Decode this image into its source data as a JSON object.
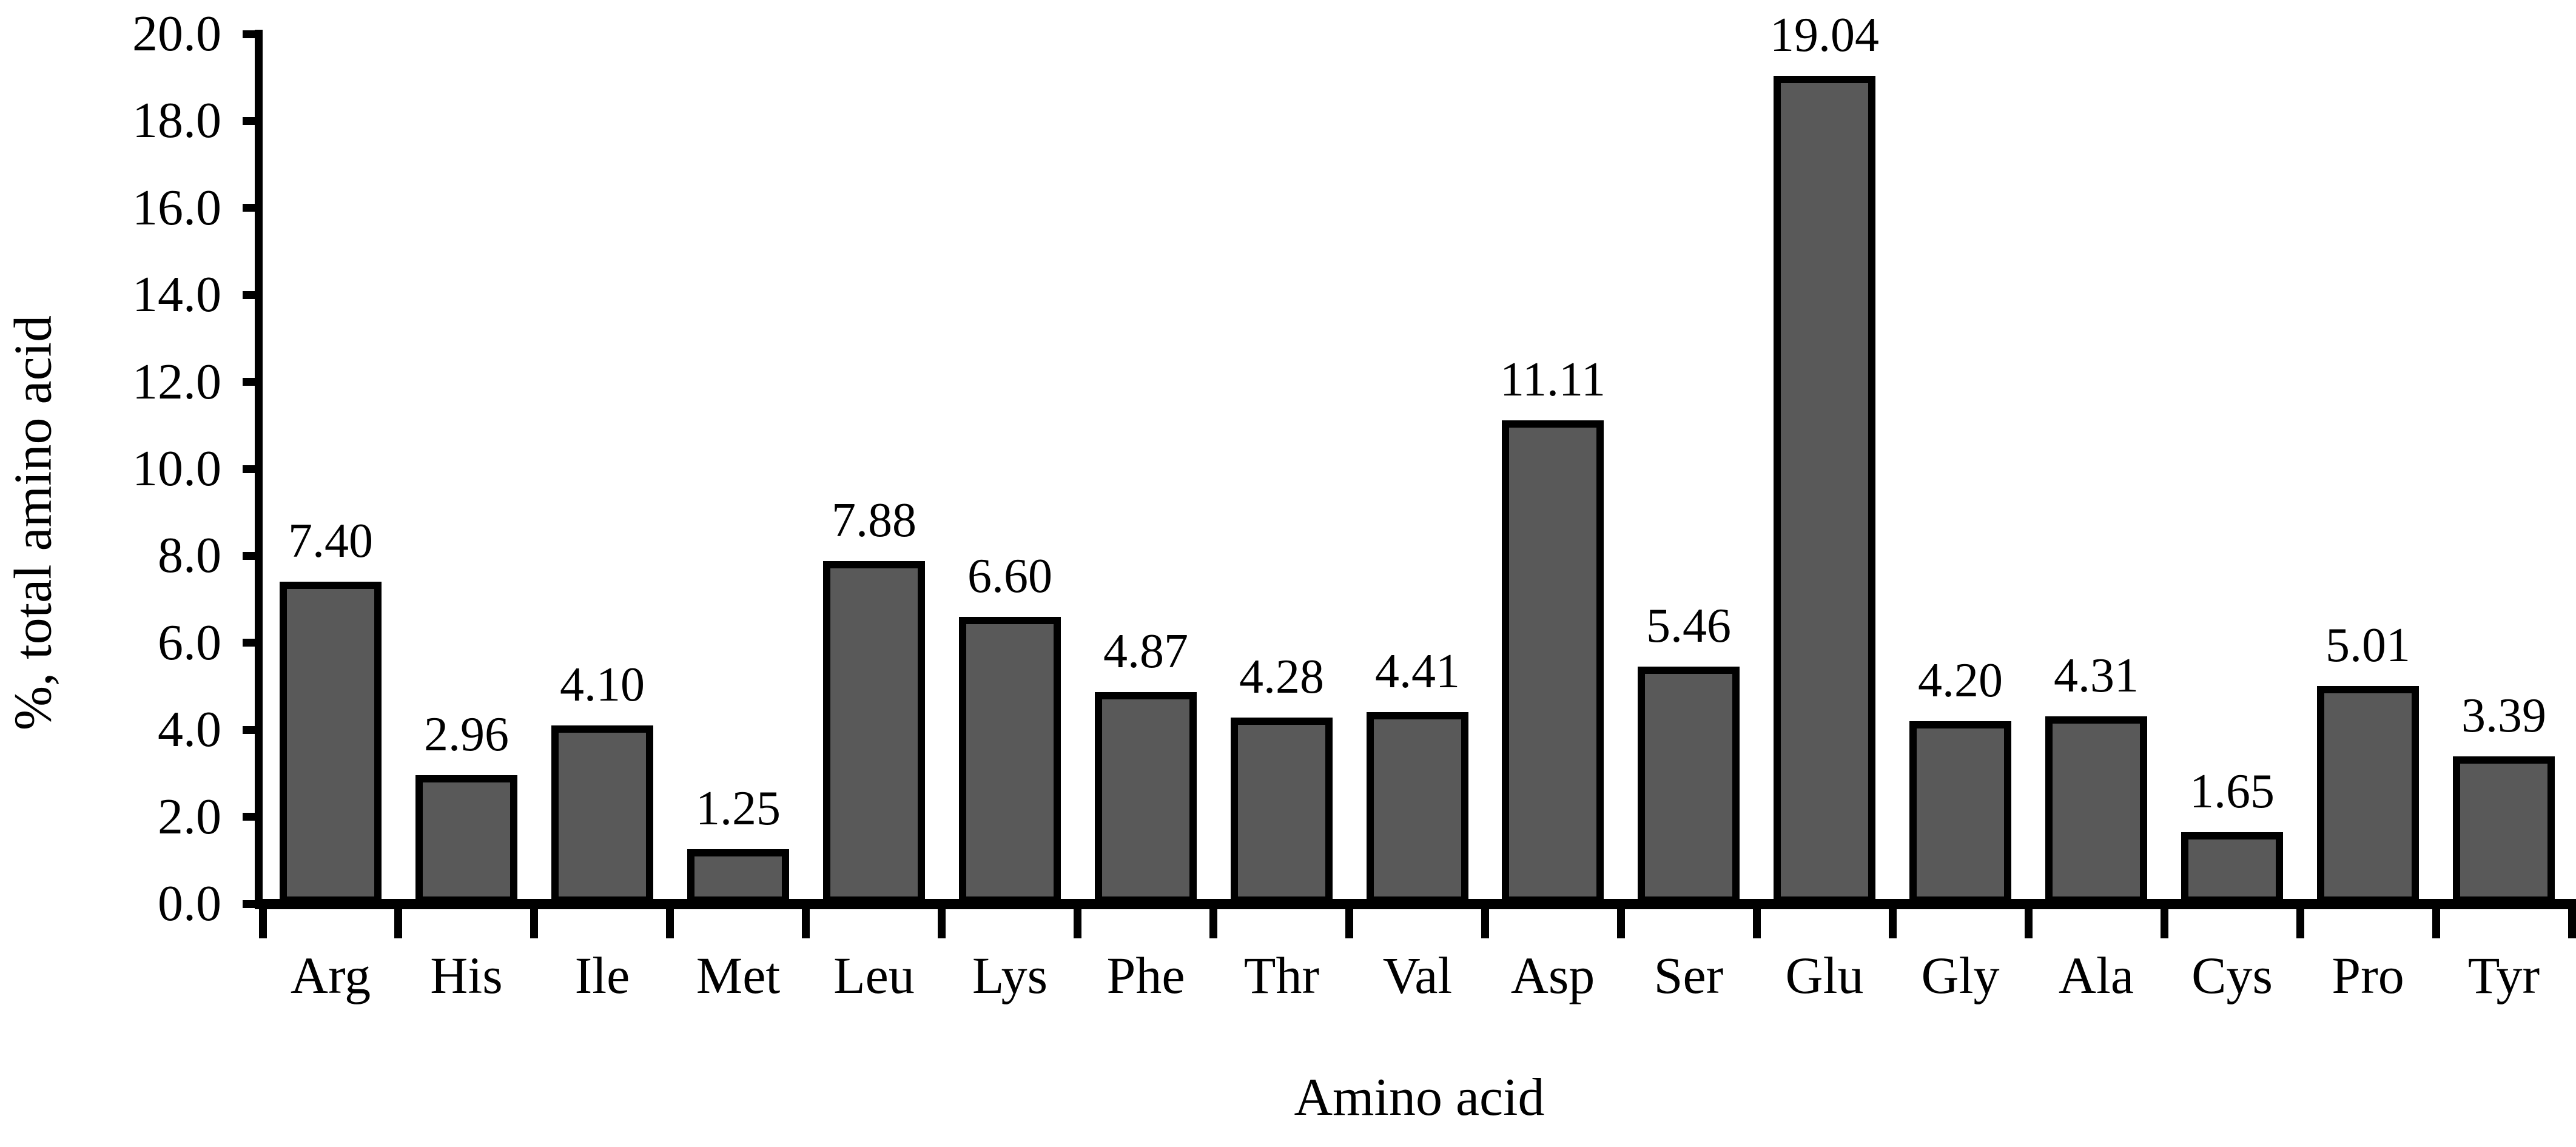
{
  "chart_data": {
    "type": "bar",
    "title": "",
    "xlabel": "Amino acid",
    "ylabel": "%, total amino acid",
    "categories": [
      "Arg",
      "His",
      "Ile",
      "Met",
      "Leu",
      "Lys",
      "Phe",
      "Thr",
      "Val",
      "Asp",
      "Ser",
      "Glu",
      "Gly",
      "Ala",
      "Cys",
      "Pro",
      "Tyr"
    ],
    "values": [
      7.4,
      2.96,
      4.1,
      1.25,
      7.88,
      6.6,
      4.87,
      4.28,
      4.41,
      11.11,
      5.46,
      19.04,
      4.2,
      4.31,
      1.65,
      5.01,
      3.39
    ],
    "value_labels": [
      "7.40",
      "2.96",
      "4.10",
      "1.25",
      "7.88",
      "6.60",
      "4.87",
      "4.28",
      "4.41",
      "11.11",
      "5.46",
      "19.04",
      "4.20",
      "4.31",
      "1.65",
      "5.01",
      "3.39"
    ],
    "ylim": [
      0,
      20
    ],
    "ytick_interval": 2.0,
    "ytick_labels": [
      "0.0",
      "2.0",
      "4.0",
      "6.0",
      "8.0",
      "10.0",
      "12.0",
      "14.0",
      "16.0",
      "18.0",
      "20.0"
    ],
    "grid": false,
    "legend": false,
    "bar_color": "#595959",
    "bar_border_color": "#000000",
    "text_color": "#000000",
    "background_color": "#ffffff"
  }
}
